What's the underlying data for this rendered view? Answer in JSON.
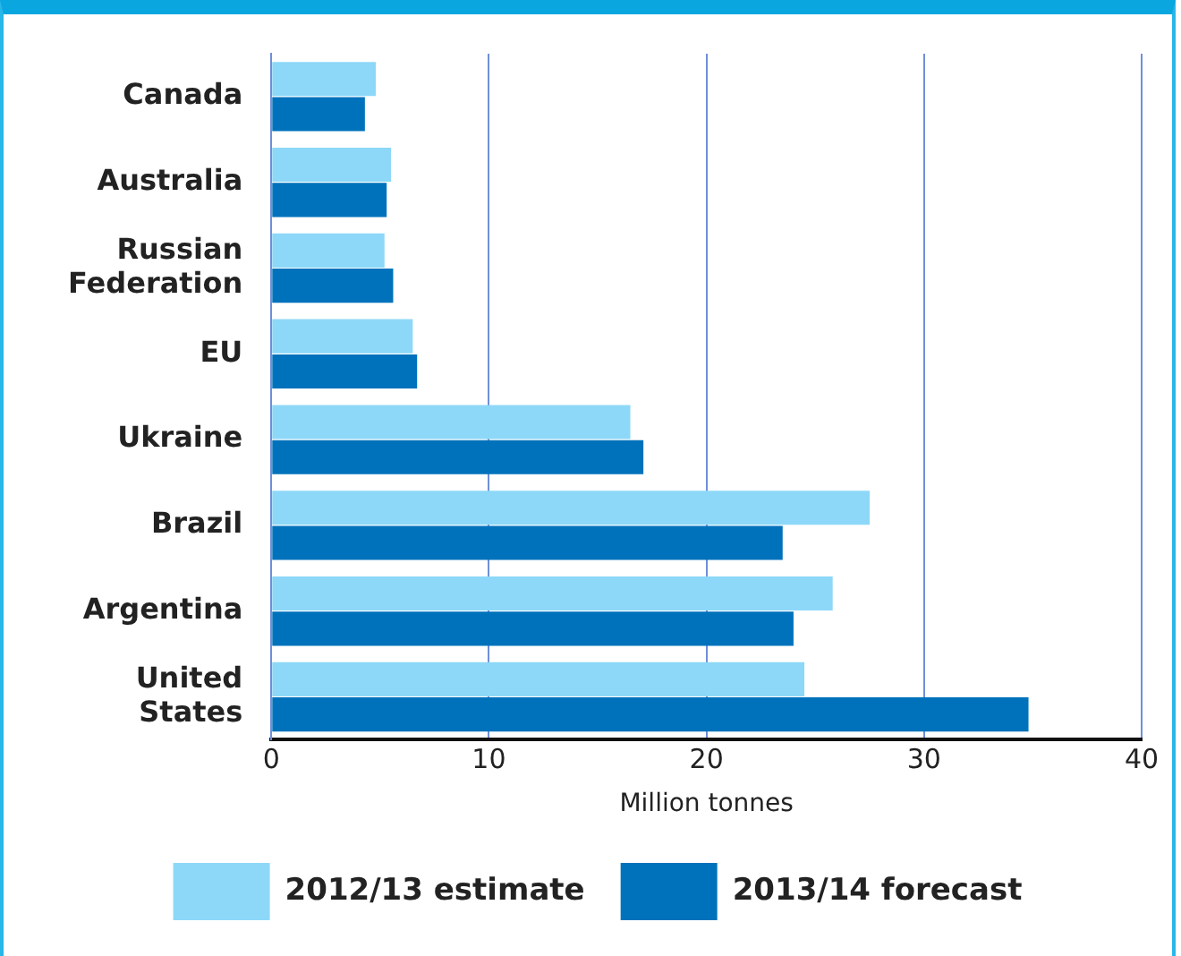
{
  "chart_data": {
    "type": "bar",
    "orientation": "horizontal",
    "xlabel": "Million tonnes",
    "categories": [
      "Canada",
      "Australia",
      "Russian Federation",
      "EU",
      "Ukraine",
      "Brazil",
      "Argentina",
      "United States"
    ],
    "series": [
      {
        "name": "2012/13 estimate",
        "color": "#8dd8f8",
        "values": [
          4.8,
          5.5,
          5.2,
          6.5,
          16.5,
          27.5,
          25.8,
          24.5
        ]
      },
      {
        "name": "2013/14 forecast",
        "color": "#0072bb",
        "values": [
          4.3,
          5.3,
          5.6,
          6.7,
          17.1,
          23.5,
          24.0,
          34.8
        ]
      }
    ],
    "xlim": [
      0,
      40
    ],
    "xticks": [
      0,
      10,
      20,
      30,
      40
    ],
    "grid": "x",
    "legend": "bottom"
  }
}
